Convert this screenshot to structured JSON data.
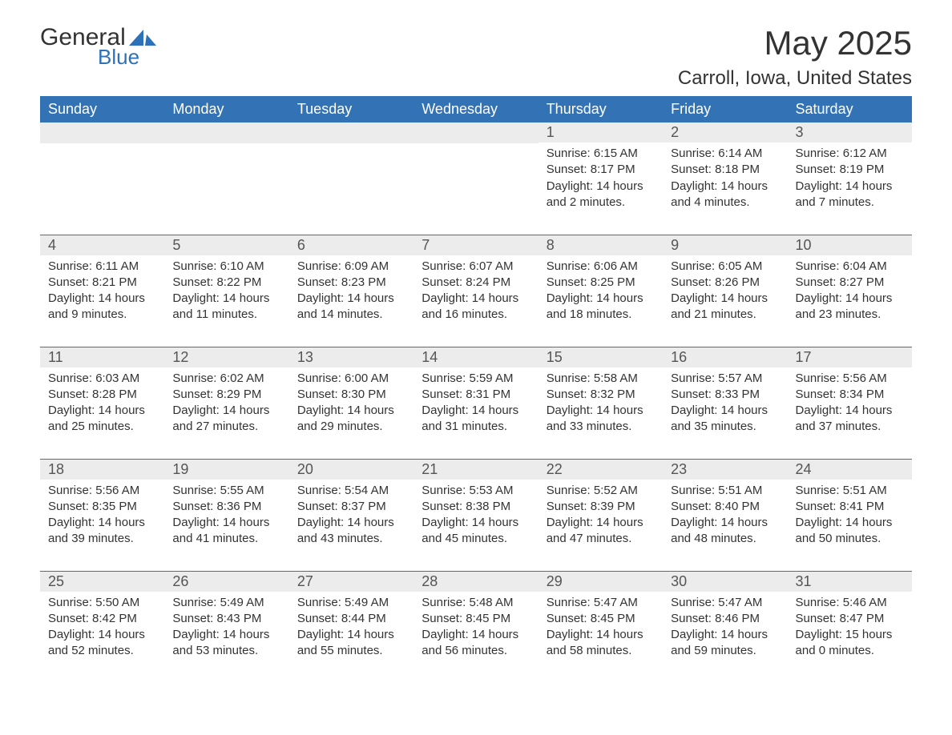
{
  "branding": {
    "logo_word1": "General",
    "logo_word2": "Blue",
    "logo_color1": "#333333",
    "logo_color2": "#2d72b8",
    "logo_icon_color": "#2d72b8"
  },
  "header": {
    "month_title": "May 2025",
    "location": "Carroll, Iowa, United States"
  },
  "styling": {
    "header_row_bg": "#3373b5",
    "header_row_text": "#ffffff",
    "daynum_bg": "#ececec",
    "daynum_text": "#555555",
    "body_text": "#333333",
    "week_divider": "#3373b5",
    "page_bg": "#ffffff",
    "header_fontsize": 18,
    "daynum_fontsize": 18,
    "body_fontsize": 15,
    "month_title_fontsize": 42,
    "location_fontsize": 24
  },
  "weekdays": [
    "Sunday",
    "Monday",
    "Tuesday",
    "Wednesday",
    "Thursday",
    "Friday",
    "Saturday"
  ],
  "weeks": [
    [
      {
        "empty": true
      },
      {
        "empty": true
      },
      {
        "empty": true
      },
      {
        "empty": true
      },
      {
        "num": "1",
        "sunrise": "Sunrise: 6:15 AM",
        "sunset": "Sunset: 8:17 PM",
        "daylight": "Daylight: 14 hours and 2 minutes."
      },
      {
        "num": "2",
        "sunrise": "Sunrise: 6:14 AM",
        "sunset": "Sunset: 8:18 PM",
        "daylight": "Daylight: 14 hours and 4 minutes."
      },
      {
        "num": "3",
        "sunrise": "Sunrise: 6:12 AM",
        "sunset": "Sunset: 8:19 PM",
        "daylight": "Daylight: 14 hours and 7 minutes."
      }
    ],
    [
      {
        "num": "4",
        "sunrise": "Sunrise: 6:11 AM",
        "sunset": "Sunset: 8:21 PM",
        "daylight": "Daylight: 14 hours and 9 minutes."
      },
      {
        "num": "5",
        "sunrise": "Sunrise: 6:10 AM",
        "sunset": "Sunset: 8:22 PM",
        "daylight": "Daylight: 14 hours and 11 minutes."
      },
      {
        "num": "6",
        "sunrise": "Sunrise: 6:09 AM",
        "sunset": "Sunset: 8:23 PM",
        "daylight": "Daylight: 14 hours and 14 minutes."
      },
      {
        "num": "7",
        "sunrise": "Sunrise: 6:07 AM",
        "sunset": "Sunset: 8:24 PM",
        "daylight": "Daylight: 14 hours and 16 minutes."
      },
      {
        "num": "8",
        "sunrise": "Sunrise: 6:06 AM",
        "sunset": "Sunset: 8:25 PM",
        "daylight": "Daylight: 14 hours and 18 minutes."
      },
      {
        "num": "9",
        "sunrise": "Sunrise: 6:05 AM",
        "sunset": "Sunset: 8:26 PM",
        "daylight": "Daylight: 14 hours and 21 minutes."
      },
      {
        "num": "10",
        "sunrise": "Sunrise: 6:04 AM",
        "sunset": "Sunset: 8:27 PM",
        "daylight": "Daylight: 14 hours and 23 minutes."
      }
    ],
    [
      {
        "num": "11",
        "sunrise": "Sunrise: 6:03 AM",
        "sunset": "Sunset: 8:28 PM",
        "daylight": "Daylight: 14 hours and 25 minutes."
      },
      {
        "num": "12",
        "sunrise": "Sunrise: 6:02 AM",
        "sunset": "Sunset: 8:29 PM",
        "daylight": "Daylight: 14 hours and 27 minutes."
      },
      {
        "num": "13",
        "sunrise": "Sunrise: 6:00 AM",
        "sunset": "Sunset: 8:30 PM",
        "daylight": "Daylight: 14 hours and 29 minutes."
      },
      {
        "num": "14",
        "sunrise": "Sunrise: 5:59 AM",
        "sunset": "Sunset: 8:31 PM",
        "daylight": "Daylight: 14 hours and 31 minutes."
      },
      {
        "num": "15",
        "sunrise": "Sunrise: 5:58 AM",
        "sunset": "Sunset: 8:32 PM",
        "daylight": "Daylight: 14 hours and 33 minutes."
      },
      {
        "num": "16",
        "sunrise": "Sunrise: 5:57 AM",
        "sunset": "Sunset: 8:33 PM",
        "daylight": "Daylight: 14 hours and 35 minutes."
      },
      {
        "num": "17",
        "sunrise": "Sunrise: 5:56 AM",
        "sunset": "Sunset: 8:34 PM",
        "daylight": "Daylight: 14 hours and 37 minutes."
      }
    ],
    [
      {
        "num": "18",
        "sunrise": "Sunrise: 5:56 AM",
        "sunset": "Sunset: 8:35 PM",
        "daylight": "Daylight: 14 hours and 39 minutes."
      },
      {
        "num": "19",
        "sunrise": "Sunrise: 5:55 AM",
        "sunset": "Sunset: 8:36 PM",
        "daylight": "Daylight: 14 hours and 41 minutes."
      },
      {
        "num": "20",
        "sunrise": "Sunrise: 5:54 AM",
        "sunset": "Sunset: 8:37 PM",
        "daylight": "Daylight: 14 hours and 43 minutes."
      },
      {
        "num": "21",
        "sunrise": "Sunrise: 5:53 AM",
        "sunset": "Sunset: 8:38 PM",
        "daylight": "Daylight: 14 hours and 45 minutes."
      },
      {
        "num": "22",
        "sunrise": "Sunrise: 5:52 AM",
        "sunset": "Sunset: 8:39 PM",
        "daylight": "Daylight: 14 hours and 47 minutes."
      },
      {
        "num": "23",
        "sunrise": "Sunrise: 5:51 AM",
        "sunset": "Sunset: 8:40 PM",
        "daylight": "Daylight: 14 hours and 48 minutes."
      },
      {
        "num": "24",
        "sunrise": "Sunrise: 5:51 AM",
        "sunset": "Sunset: 8:41 PM",
        "daylight": "Daylight: 14 hours and 50 minutes."
      }
    ],
    [
      {
        "num": "25",
        "sunrise": "Sunrise: 5:50 AM",
        "sunset": "Sunset: 8:42 PM",
        "daylight": "Daylight: 14 hours and 52 minutes."
      },
      {
        "num": "26",
        "sunrise": "Sunrise: 5:49 AM",
        "sunset": "Sunset: 8:43 PM",
        "daylight": "Daylight: 14 hours and 53 minutes."
      },
      {
        "num": "27",
        "sunrise": "Sunrise: 5:49 AM",
        "sunset": "Sunset: 8:44 PM",
        "daylight": "Daylight: 14 hours and 55 minutes."
      },
      {
        "num": "28",
        "sunrise": "Sunrise: 5:48 AM",
        "sunset": "Sunset: 8:45 PM",
        "daylight": "Daylight: 14 hours and 56 minutes."
      },
      {
        "num": "29",
        "sunrise": "Sunrise: 5:47 AM",
        "sunset": "Sunset: 8:45 PM",
        "daylight": "Daylight: 14 hours and 58 minutes."
      },
      {
        "num": "30",
        "sunrise": "Sunrise: 5:47 AM",
        "sunset": "Sunset: 8:46 PM",
        "daylight": "Daylight: 14 hours and 59 minutes."
      },
      {
        "num": "31",
        "sunrise": "Sunrise: 5:46 AM",
        "sunset": "Sunset: 8:47 PM",
        "daylight": "Daylight: 15 hours and 0 minutes."
      }
    ]
  ]
}
